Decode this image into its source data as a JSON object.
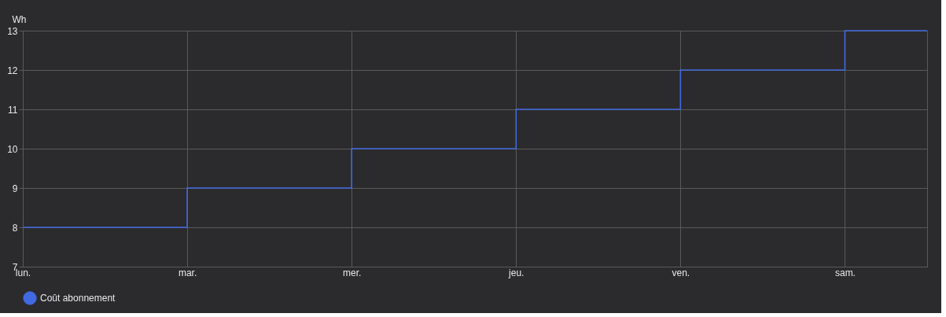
{
  "chart_data": {
    "type": "step",
    "ylabel": "Wh",
    "categories": [
      "lun.",
      null,
      "mar.",
      null,
      "mer.",
      null,
      "jeu.",
      null,
      "ven.",
      null,
      "sam.",
      null
    ],
    "series": [
      {
        "name": "Coût abonnement",
        "color": "#4169e1",
        "values": [
          8,
          8,
          9,
          9,
          10,
          10,
          11,
          11,
          12,
          12,
          13,
          13
        ]
      }
    ],
    "ylim": [
      7,
      13
    ],
    "yticks": [
      7,
      8,
      9,
      10,
      11,
      12,
      13
    ],
    "grid": true,
    "legend": "bottom",
    "marker": "none",
    "line_style": "solid"
  }
}
